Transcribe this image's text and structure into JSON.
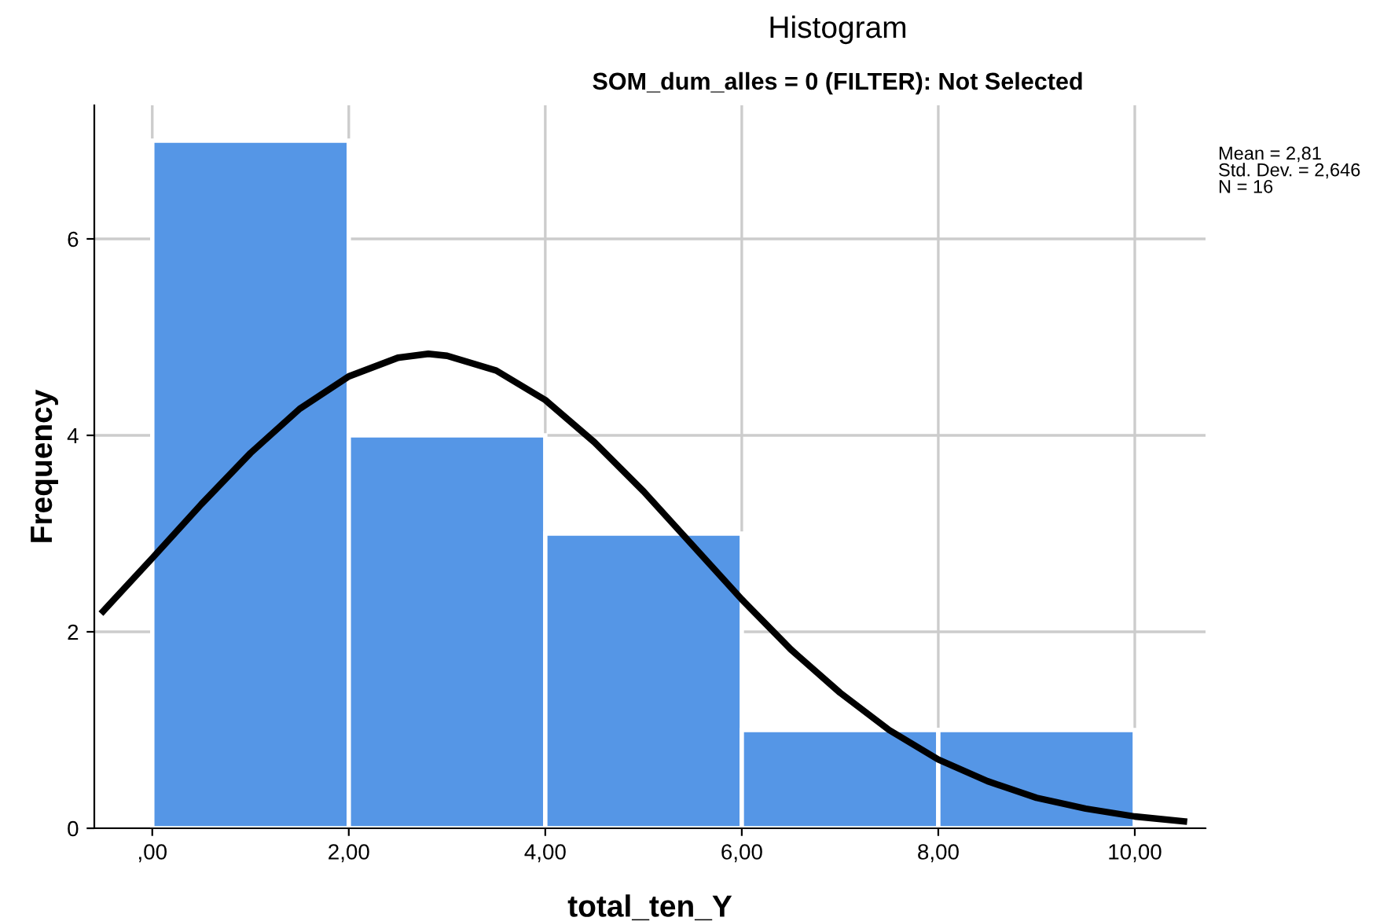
{
  "chart_data": {
    "type": "histogram",
    "title": "Histogram",
    "subtitle": "SOM_dum_alles = 0 (FILTER): Not Selected",
    "xlabel": "total_ten_Y",
    "ylabel": "Frequency",
    "bins": [
      0,
      2,
      4,
      6,
      8,
      10
    ],
    "values": [
      7,
      4,
      3,
      1,
      1
    ],
    "color": "#5596e6",
    "series": [
      {
        "type": "line",
        "color": "#000000",
        "x": [
          -0.5,
          0,
          0.5,
          1,
          1.5,
          2,
          2.5,
          2.81,
          3,
          3.5,
          4,
          4.5,
          5,
          5.5,
          6,
          6.5,
          7,
          7.5,
          8,
          8.5,
          9,
          9.5,
          10,
          10.5
        ],
        "values": [
          2.21,
          2.75,
          3.3,
          3.82,
          4.27,
          4.6,
          4.79,
          4.83,
          4.81,
          4.66,
          4.36,
          3.93,
          3.43,
          2.88,
          2.33,
          1.82,
          1.38,
          1.0,
          0.7,
          0.48,
          0.31,
          0.2,
          0.12,
          0.07
        ]
      }
    ],
    "xlim": [
      -0.59,
      10.72
    ],
    "ylim": [
      0,
      7.36
    ],
    "xticks": [
      {
        "value": 0,
        "label": ",00"
      },
      {
        "value": 2,
        "label": "2,00"
      },
      {
        "value": 4,
        "label": "4,00"
      },
      {
        "value": 6,
        "label": "6,00"
      },
      {
        "value": 8,
        "label": "8,00"
      },
      {
        "value": 10,
        "label": "10,00"
      }
    ],
    "yticks": [
      0,
      2,
      4,
      6
    ],
    "grid": true,
    "annotations": [
      "Mean = 2,81\nStd. Dev. = 2,646\nN = 16"
    ]
  }
}
